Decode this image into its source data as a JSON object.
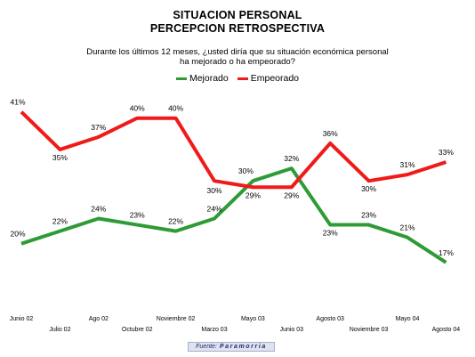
{
  "chart_data": {
    "type": "line",
    "title": "SITUACION PERSONAL",
    "title2": "PERCEPCION RETROSPECTIVA",
    "subtitle_line1": "Durante los últimos 12 meses, ¿usted diría que su situación económica personal",
    "subtitle_line2": "ha mejorado o ha empeorado?",
    "legend_position": "top-center",
    "categories": [
      "Junio 02",
      "Julio 02",
      "Ago 02",
      "Octubre 02",
      "Noviembre 02",
      "Marzo 03",
      "Mayo 03",
      "Junio 03",
      "Agosto 03",
      "Noviembre 03",
      "Mayo 04",
      "Agosto 04"
    ],
    "series": [
      {
        "name": "Mejorado",
        "color": "#2e9b35",
        "values": [
          20,
          22,
          24,
          23,
          22,
          24,
          30,
          32,
          23,
          23,
          21,
          17
        ],
        "labels": [
          "20%",
          "22%",
          "24%",
          "23%",
          "22%",
          "24%",
          "30%",
          "32%",
          "23%",
          "23%",
          "21%",
          "17%"
        ]
      },
      {
        "name": "Empeorado",
        "color": "#f01a1a",
        "values": [
          41,
          35,
          37,
          40,
          40,
          30,
          29,
          29,
          36,
          30,
          31,
          33
        ],
        "labels": [
          "41%",
          "35%",
          "37%",
          "40%",
          "40%",
          "30%",
          "29%",
          "29%",
          "36%",
          "30%",
          "31%",
          "33%"
        ]
      }
    ],
    "grid": false
  },
  "source": {
    "label": "Fuente:",
    "name": "Paramorria"
  }
}
